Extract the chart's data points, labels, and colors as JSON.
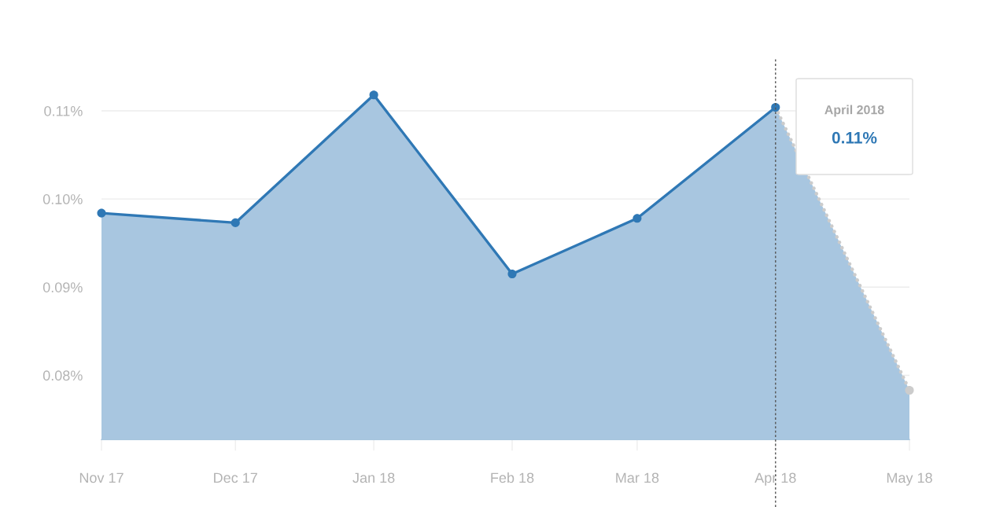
{
  "chart_data": {
    "type": "area",
    "x": [
      "2017-11",
      "2017-12",
      "2018-01",
      "2018-02",
      "2018-03",
      "2018-04",
      "2018-05"
    ],
    "series": [
      {
        "color": "#2f78b5",
        "colors": [
          "#2f78b5",
          "#2f78b5",
          "#2f78b5",
          "#2f78b5",
          "#2f78b5",
          "#2f78b5",
          "#cccccc"
        ],
        "line_style": "solid",
        "marker": "circle",
        "values": [
          0.0984,
          0.0973,
          0.1118,
          0.0915,
          0.0978,
          0.1104,
          0.0783
        ]
      }
    ],
    "xlim": [
      "2017-11",
      "2018-05"
    ],
    "xticks": [
      {
        "value": "2017-11",
        "label": "Nov 17"
      },
      {
        "value": "2017-12",
        "label": "Dec 17"
      },
      {
        "value": "2018-01",
        "label": "Jan 18"
      },
      {
        "value": "2018-02",
        "label": "Feb 18"
      },
      {
        "value": "2018-03",
        "label": "Mar 18"
      },
      {
        "value": "2018-04",
        "label": "Apr 18"
      },
      {
        "value": "2018-05",
        "label": "May 18"
      }
    ],
    "ylim": [
      0.0727,
      0.116
    ],
    "yticks": [
      {
        "value": 0.08,
        "label": "0.08%"
      },
      {
        "value": 0.09,
        "label": "0.09%"
      },
      {
        "value": 0.1,
        "label": "0.10%"
      },
      {
        "value": 0.11,
        "label": "0.11%"
      }
    ],
    "grid": "y",
    "ref_lines": [
      {
        "axis": "x",
        "value": "2018-04",
        "color": "#555555",
        "line_style": "dashed"
      }
    ],
    "annotations": [
      "April 2018",
      "0.11%"
    ]
  }
}
